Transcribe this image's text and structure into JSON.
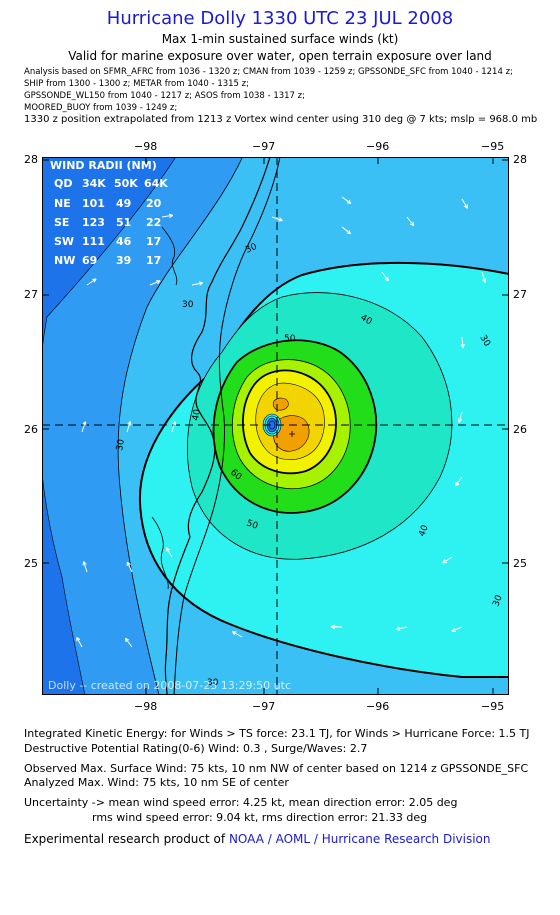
{
  "header": {
    "title": "Hurricane Dolly 1330 UTC 23 JUL 2008",
    "subtitle": "Max 1-min sustained surface winds (kt)",
    "valid": "Valid for marine exposure over water, open terrain exposure over land"
  },
  "analysis_sources": [
    "Analysis based on  SFMR_AFRC from 1036 - 1320 z;  CMAN from 1039 - 1259 z;  GPSSONDE_SFC from 1040 - 1214 z;",
    "SHIP from 1300 - 1300 z;  METAR from 1040 - 1315 z;",
    "GPSSONDE_WL150 from 1040 - 1217 z;  ASOS from 1038 - 1317 z;",
    "MOORED_BUOY from 1039 - 1249 z;"
  ],
  "extrapolation": "1330 z position extrapolated from 1213 z Vortex wind center using 310 deg @ 7 kts; mslp = 968.0 mb",
  "map": {
    "x_ticks": [
      "−98",
      "−97",
      "−96",
      "−95"
    ],
    "y_ticks": [
      "28",
      "27",
      "26",
      "25"
    ],
    "x_range": [
      -98.8,
      -94.85
    ],
    "y_range": [
      24.05,
      28.05
    ],
    "center": {
      "lon": -96.87,
      "lat": 26.02
    },
    "contour_labels": [
      "30",
      "30",
      "30",
      "30",
      "30",
      "30",
      "40",
      "40",
      "40",
      "50",
      "50",
      "60"
    ],
    "colors": {
      "deep_blue": "#1c73ea",
      "blue": "#2f9bf2",
      "light_blue": "#3bc0f6",
      "cyan": "#2ef2f2",
      "aqua": "#20e6c8",
      "green": "#22dd1a",
      "yellow_green": "#a6f200",
      "yellow": "#f2f200",
      "orange": "#f2a000"
    },
    "credit": "Dolly -- created on 2008-07-23 13:29:50 utc"
  },
  "wind_radii": {
    "title": "WIND RADII (NM)",
    "header": [
      "QD",
      "34K",
      "50K",
      "64K"
    ],
    "rows": [
      [
        "NE",
        "101",
        "49",
        "20"
      ],
      [
        "SE",
        "123",
        "51",
        "22"
      ],
      [
        "SW",
        "111",
        "46",
        "17"
      ],
      [
        "NW",
        "69",
        "39",
        "17"
      ]
    ]
  },
  "footer": {
    "ike": "Integrated Kinetic Energy:  for Winds > TS force: 23.1 TJ,  for Winds > Hurricane Force: 1.5 TJ",
    "dpr": "Destructive Potential Rating(0-6)   Wind: 0.3 , Surge/Waves: 2.7",
    "observed": "Observed Max. Surface Wind: 75 kts, 10 nm NW of center based on 1214 z GPSSONDE_SFC",
    "analyzed": "Analyzed Max. Wind: 75 kts, 10 nm SE of center",
    "uncert1": "Uncertainty -> mean wind speed error: 4.25 kt,   mean direction error: 2.05 deg",
    "uncert2": "rms wind speed error: 9.04 kt,   rms direction error: 21.33 deg",
    "credit_prefix": "Experimental research product of",
    "credit_org": "NOAA / AOML / Hurricane Research Division"
  }
}
